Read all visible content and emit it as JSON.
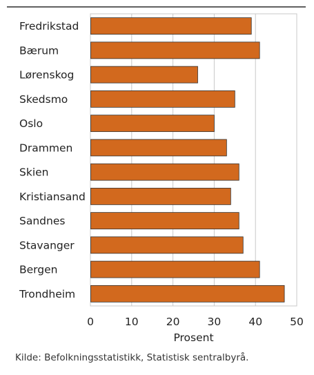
{
  "chart_data": {
    "type": "bar",
    "orientation": "horizontal",
    "categories": [
      "Fredrikstad",
      "Bærum",
      "Lørenskog",
      "Skedsmo",
      "Oslo",
      "Drammen",
      "Skien",
      "Kristiansand",
      "Sandnes",
      "Stavanger",
      "Bergen",
      "Trondheim"
    ],
    "values": [
      39,
      41,
      26,
      35,
      30,
      33,
      36,
      34,
      36,
      37,
      41,
      47
    ],
    "xlabel": "Prosent",
    "ylabel": "",
    "xlim": [
      0,
      50
    ],
    "xticks": [
      "0",
      "10",
      "20",
      "30",
      "40",
      "50"
    ],
    "grid": "vertical",
    "legend": "none",
    "colors": {
      "bar_fill": "#d2691e",
      "bar_stroke": "#333333",
      "grid": "#c8c8c8",
      "frame": "#000000"
    }
  },
  "source": "Kilde: Befolkningsstatistikk, Statistisk sentralbyrå."
}
